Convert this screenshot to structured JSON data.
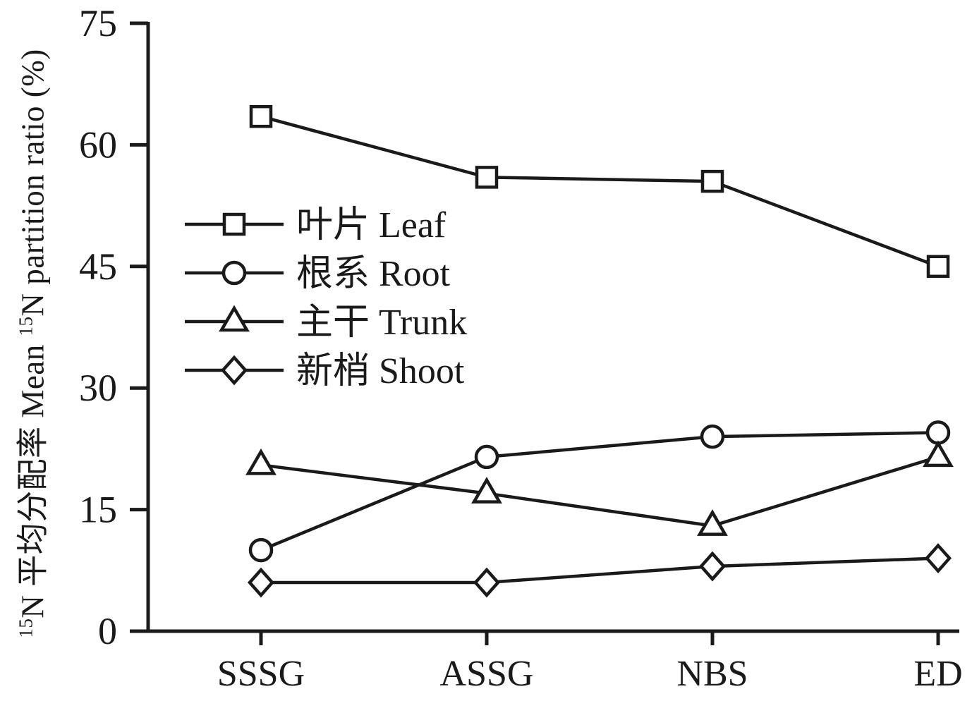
{
  "chart_data": {
    "type": "line",
    "title": "",
    "xlabel": "",
    "ylabel": "15N 平均分配率 Mean 15N partition ratio (%)",
    "ylabel_segments": [
      {
        "text": "15",
        "sup": true
      },
      {
        "text": "N 平均分配率 Mean ",
        "sup": false
      },
      {
        "text": "15",
        "sup": true
      },
      {
        "text": "N partition ratio (%)",
        "sup": false
      }
    ],
    "categories": [
      "SSSG",
      "ASSG",
      "NBS",
      "ED"
    ],
    "series": [
      {
        "name": "叶片 Leaf",
        "marker": "square",
        "values": [
          63.5,
          56,
          55.5,
          45
        ]
      },
      {
        "name": "根系 Root",
        "marker": "circle",
        "values": [
          10,
          21.5,
          24,
          24.5
        ]
      },
      {
        "name": "主干 Trunk",
        "marker": "triangle",
        "values": [
          20.5,
          17,
          13,
          21.5
        ]
      },
      {
        "name": "新梢 Shoot",
        "marker": "diamond",
        "values": [
          6,
          6,
          8,
          9
        ]
      }
    ],
    "yticks": [
      0,
      15,
      30,
      45,
      60,
      75
    ],
    "ylim": [
      0,
      75
    ],
    "grid": false,
    "legend_position": "inside upper-left",
    "line_color": "#1a1a1a",
    "marker_fill": "#ffffff"
  }
}
